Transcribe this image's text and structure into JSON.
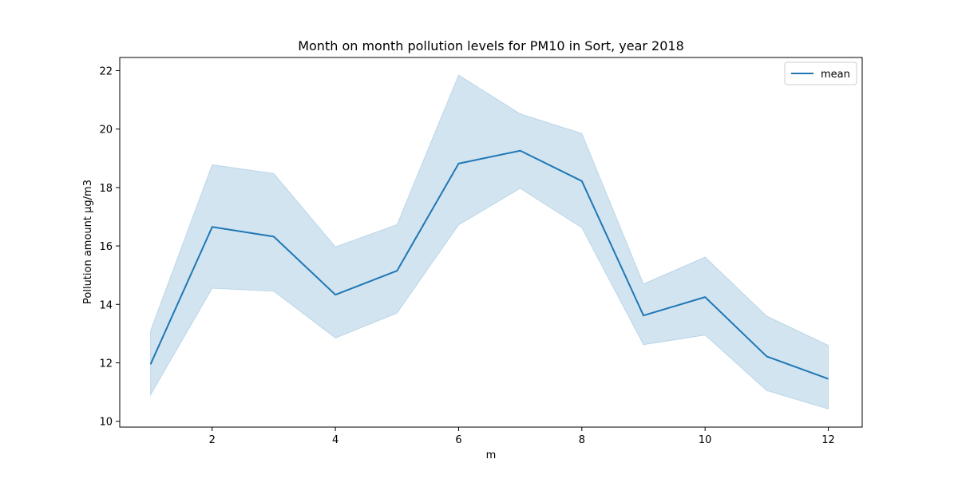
{
  "chart_data": {
    "type": "line",
    "title": "Month on month pollution levels for PM10 in Sort, year 2018",
    "xlabel": "m",
    "ylabel": "Pollution amount µg/m3",
    "xlim": [
      0.5,
      12.55
    ],
    "ylim": [
      9.8,
      22.45
    ],
    "xticks": [
      2,
      4,
      6,
      8,
      10,
      12
    ],
    "yticks": [
      10,
      12,
      14,
      16,
      18,
      20,
      22
    ],
    "grid": false,
    "legend": {
      "position": "top-right",
      "entries": [
        "mean"
      ]
    },
    "x": [
      1,
      2,
      3,
      4,
      5,
      6,
      7,
      8,
      9,
      10,
      11,
      12
    ],
    "series": [
      {
        "name": "mean",
        "color": "#1f77b4",
        "values": [
          11.95,
          16.65,
          16.32,
          14.33,
          15.15,
          18.82,
          19.26,
          18.22,
          13.62,
          14.25,
          12.22,
          11.45
        ],
        "band_lower": [
          10.9,
          14.55,
          14.45,
          12.85,
          13.7,
          16.72,
          17.97,
          16.62,
          12.62,
          12.95,
          11.05,
          10.42
        ],
        "band_upper": [
          13.1,
          18.78,
          18.48,
          15.97,
          16.73,
          21.85,
          20.52,
          19.85,
          14.7,
          15.62,
          13.6,
          12.6
        ],
        "band_color": "#1f77b4",
        "band_opacity": 0.2
      }
    ]
  }
}
